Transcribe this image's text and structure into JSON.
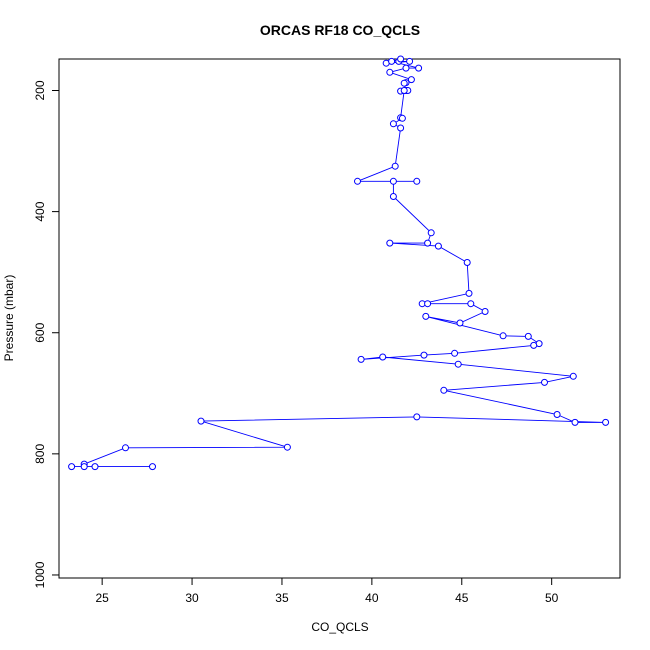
{
  "chart_data": {
    "type": "line",
    "title": "ORCAS RF18 CO_QCLS",
    "xlabel": "CO_QCLS",
    "ylabel": "Pressure (mbar)",
    "xlim": [
      22.6,
      53.8
    ],
    "ylim": [
      1005,
      148
    ],
    "y_inverted": true,
    "grid": false,
    "line_color": "#0000ff",
    "marker": "open-circle",
    "x_ticks": [
      25,
      30,
      35,
      40,
      45,
      50
    ],
    "y_ticks": [
      200,
      400,
      600,
      800,
      1000
    ],
    "series": [
      {
        "points": [
          [
            41.5,
            152
          ],
          [
            42.1,
            152
          ],
          [
            40.8,
            155
          ],
          [
            41.6,
            148
          ],
          [
            41.1,
            152
          ],
          [
            42.6,
            163
          ],
          [
            41.9,
            163
          ],
          [
            41.0,
            170
          ],
          [
            42.2,
            182
          ],
          [
            41.9,
            187
          ],
          [
            41.8,
            188
          ],
          [
            41.9,
            200
          ],
          [
            42.0,
            200
          ],
          [
            41.6,
            201
          ],
          [
            41.8,
            200
          ],
          [
            41.6,
            245
          ],
          [
            41.7,
            246
          ],
          [
            41.2,
            255
          ],
          [
            41.6,
            262
          ],
          [
            41.3,
            325
          ],
          [
            39.2,
            350
          ],
          [
            42.5,
            350
          ],
          [
            41.2,
            350
          ],
          [
            41.2,
            375
          ],
          [
            43.3,
            435
          ],
          [
            43.1,
            452
          ],
          [
            41.0,
            452
          ],
          [
            43.7,
            457
          ],
          [
            45.3,
            484
          ],
          [
            45.4,
            535
          ],
          [
            42.8,
            552
          ],
          [
            43.1,
            552
          ],
          [
            45.5,
            552
          ],
          [
            46.3,
            565
          ],
          [
            44.9,
            584
          ],
          [
            43.0,
            573
          ],
          [
            47.3,
            605
          ],
          [
            48.7,
            606
          ],
          [
            49.3,
            618
          ],
          [
            49.0,
            621
          ],
          [
            44.6,
            634
          ],
          [
            42.9,
            637
          ],
          [
            39.4,
            644
          ],
          [
            40.6,
            640
          ],
          [
            44.8,
            652
          ],
          [
            51.2,
            672
          ],
          [
            49.6,
            682
          ],
          [
            44.0,
            695
          ],
          [
            50.3,
            735
          ],
          [
            51.3,
            748
          ],
          [
            53.0,
            748
          ],
          [
            42.5,
            739
          ],
          [
            30.5,
            746
          ],
          [
            35.3,
            789
          ],
          [
            26.3,
            790
          ],
          [
            24.0,
            817
          ],
          [
            24.0,
            821
          ],
          [
            24.6,
            821
          ],
          [
            27.8,
            821
          ],
          [
            23.3,
            821
          ]
        ]
      }
    ]
  }
}
